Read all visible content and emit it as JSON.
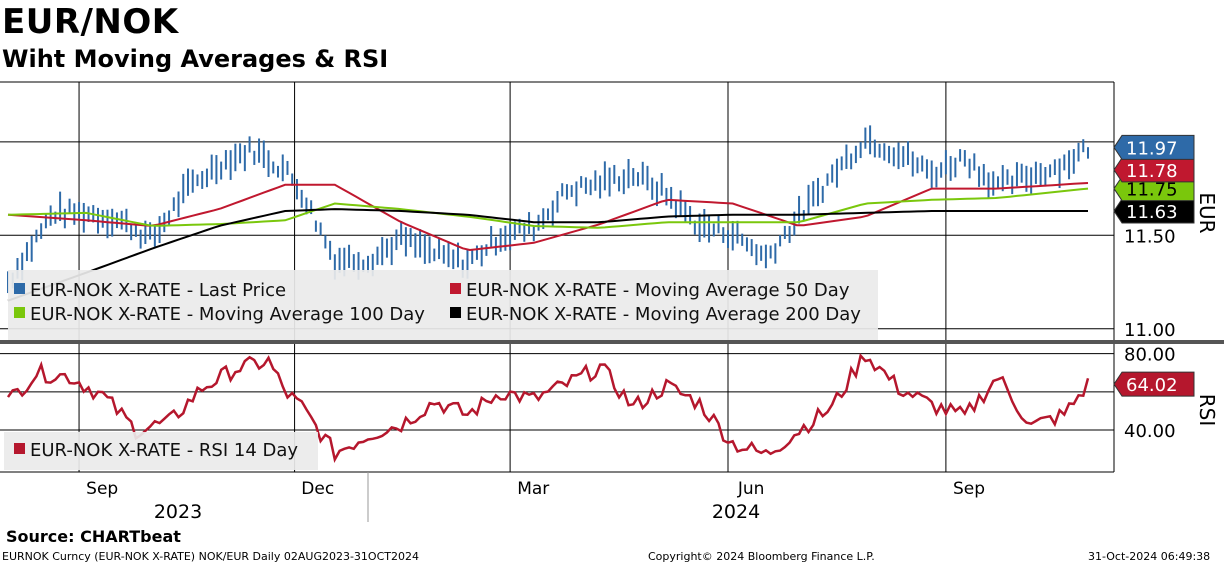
{
  "title": "EUR/NOK",
  "subtitle": "Wiht Moving Averages & RSI",
  "source": "Source: CHARTbeat",
  "footer": {
    "left": "EURNOK Curncy (EUR-NOK X-RATE) NOK/EUR  Daily 02AUG2023-31OCT2024",
    "middle": "Copyright© 2024 Bloomberg Finance L.P.",
    "right": "31-Oct-2024 06:49:38"
  },
  "colors": {
    "price": "#2e6aa8",
    "ma50": "#c0182f",
    "ma100": "#7ac70c",
    "ma200": "#000000",
    "rsi": "#b5172d",
    "legend_bg": "#eaeaea"
  },
  "chart_data": [
    {
      "type": "line",
      "panel": "price",
      "axis_label": "EUR",
      "ylim": [
        10.94,
        12.32
      ],
      "y_ticks": [
        "11.00",
        "11.50"
      ],
      "x_ticks": [
        "Sep",
        "Dec",
        "Mar",
        "Jun",
        "Sep"
      ],
      "years": [
        "2023",
        "2024"
      ],
      "legend_placement": "bottom-left",
      "grid": true,
      "series": [
        {
          "name": "EUR-NOK X-RATE - Last Price",
          "style": "bars",
          "x": [
            "2023-08-02",
            "2023-08-21",
            "2023-09-04",
            "2023-09-18",
            "2023-10-02",
            "2023-10-16",
            "2023-10-30",
            "2023-11-13",
            "2023-11-27",
            "2023-12-04",
            "2023-12-18",
            "2024-01-02",
            "2024-01-15",
            "2024-01-29",
            "2024-02-12",
            "2024-02-26",
            "2024-03-11",
            "2024-03-25",
            "2024-04-08",
            "2024-04-22",
            "2024-05-06",
            "2024-05-20",
            "2024-06-03",
            "2024-06-17",
            "2024-07-01",
            "2024-07-15",
            "2024-07-29",
            "2024-08-12",
            "2024-08-26",
            "2024-09-09",
            "2024-09-23",
            "2024-10-07",
            "2024-10-21",
            "2024-10-31"
          ],
          "values": [
            11.25,
            11.62,
            11.62,
            11.58,
            11.48,
            11.74,
            11.88,
            11.96,
            11.85,
            11.73,
            11.37,
            11.37,
            11.48,
            11.4,
            11.35,
            11.5,
            11.54,
            11.74,
            11.78,
            11.83,
            11.72,
            11.55,
            11.51,
            11.38,
            11.6,
            11.82,
            12.02,
            11.94,
            11.83,
            11.92,
            11.76,
            11.82,
            11.88,
            11.97
          ],
          "last_label": "11.97"
        },
        {
          "name": "EUR-NOK X-RATE - Moving Average 50 Day",
          "style": "line",
          "x": [
            "2023-08-02",
            "2023-09-04",
            "2023-10-02",
            "2023-10-30",
            "2023-11-27",
            "2023-12-18",
            "2024-01-15",
            "2024-02-12",
            "2024-03-11",
            "2024-04-08",
            "2024-05-06",
            "2024-06-03",
            "2024-07-01",
            "2024-07-29",
            "2024-08-26",
            "2024-09-23",
            "2024-10-31"
          ],
          "values": [
            11.61,
            11.58,
            11.55,
            11.64,
            11.77,
            11.77,
            11.57,
            11.42,
            11.46,
            11.56,
            11.69,
            11.67,
            11.55,
            11.6,
            11.75,
            11.75,
            11.78
          ],
          "last_label": "11.78"
        },
        {
          "name": "EUR-NOK X-RATE - Moving Average 100 Day",
          "style": "line",
          "x": [
            "2023-08-02",
            "2023-09-04",
            "2023-10-02",
            "2023-10-30",
            "2023-11-27",
            "2023-12-18",
            "2024-01-15",
            "2024-02-12",
            "2024-03-11",
            "2024-04-08",
            "2024-05-06",
            "2024-06-03",
            "2024-07-01",
            "2024-07-29",
            "2024-08-26",
            "2024-09-23",
            "2024-10-31"
          ],
          "values": [
            11.61,
            11.62,
            11.55,
            11.56,
            11.58,
            11.67,
            11.64,
            11.6,
            11.55,
            11.54,
            11.57,
            11.57,
            11.57,
            11.67,
            11.69,
            11.7,
            11.75
          ],
          "last_label": "11.75"
        },
        {
          "name": "EUR-NOK X-RATE - Moving Average 200 Day",
          "style": "line",
          "x": [
            "2023-08-02",
            "2023-09-04",
            "2023-10-02",
            "2023-10-30",
            "2023-11-27",
            "2023-12-18",
            "2024-01-15",
            "2024-02-12",
            "2024-03-11",
            "2024-04-08",
            "2024-05-06",
            "2024-06-03",
            "2024-07-01",
            "2024-07-29",
            "2024-08-26",
            "2024-09-23",
            "2024-10-31"
          ],
          "values": [
            11.15,
            11.3,
            11.43,
            11.55,
            11.63,
            11.64,
            11.63,
            11.61,
            11.57,
            11.57,
            11.6,
            11.61,
            11.61,
            11.62,
            11.63,
            11.63,
            11.63
          ],
          "last_label": "11.63"
        }
      ]
    },
    {
      "type": "line",
      "panel": "rsi",
      "axis_label": "RSI",
      "ylim": [
        18,
        84
      ],
      "y_ticks": [
        "40.00",
        "80.00"
      ],
      "legend_placement": "bottom-left",
      "grid": true,
      "series": [
        {
          "name": "EUR-NOK X-RATE - RSI 14 Day",
          "x": [
            "2023-08-02",
            "2023-08-14",
            "2023-08-28",
            "2023-09-11",
            "2023-09-25",
            "2023-10-09",
            "2023-10-23",
            "2023-11-06",
            "2023-11-20",
            "2023-11-27",
            "2023-12-04",
            "2023-12-18",
            "2024-01-02",
            "2024-01-15",
            "2024-01-29",
            "2024-02-12",
            "2024-02-26",
            "2024-03-11",
            "2024-03-25",
            "2024-04-08",
            "2024-04-22",
            "2024-05-06",
            "2024-05-20",
            "2024-06-03",
            "2024-06-17",
            "2024-07-01",
            "2024-07-15",
            "2024-07-29",
            "2024-08-12",
            "2024-08-26",
            "2024-09-09",
            "2024-09-23",
            "2024-10-07",
            "2024-10-21",
            "2024-10-31"
          ],
          "values": [
            55,
            70,
            68,
            58,
            40,
            44,
            62,
            72,
            76,
            60,
            52,
            28,
            38,
            43,
            55,
            48,
            60,
            56,
            64,
            73,
            52,
            63,
            54,
            33,
            27,
            40,
            52,
            80,
            62,
            53,
            47,
            68,
            42,
            48,
            64
          ],
          "last_label": "64.02"
        }
      ]
    }
  ]
}
